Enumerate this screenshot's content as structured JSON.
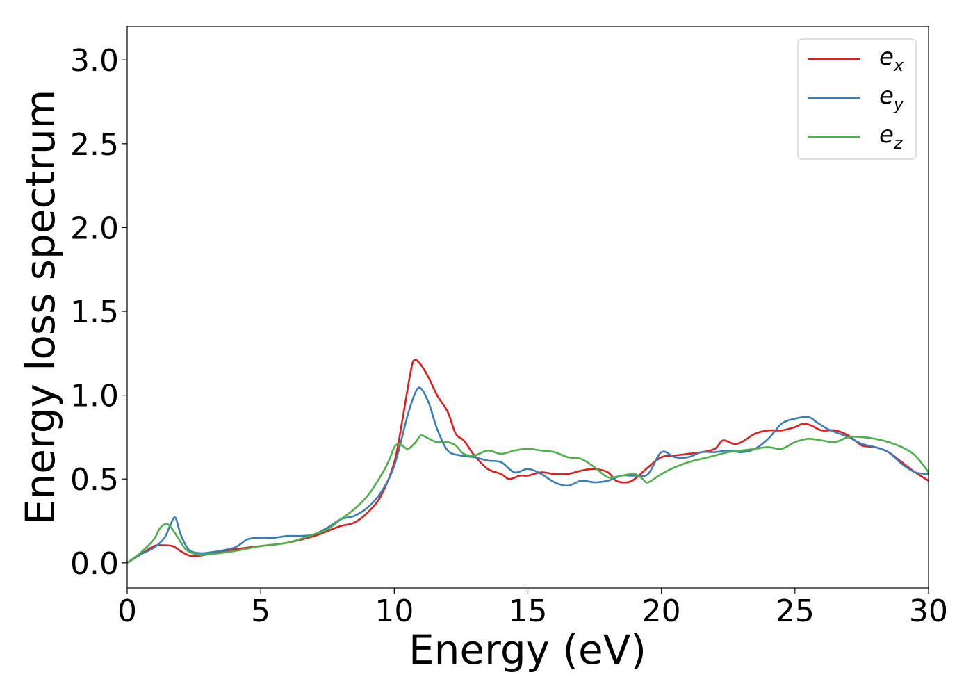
{
  "chart_data": {
    "type": "line",
    "title": "",
    "xlabel": "Energy (eV)",
    "ylabel": "Energy loss spectrum",
    "xlim": [
      0,
      30
    ],
    "ylim": [
      -0.15,
      3.2
    ],
    "xticks": [
      0,
      5,
      10,
      15,
      20,
      25,
      30
    ],
    "xtick_labels": [
      "0",
      "5",
      "10",
      "15",
      "20",
      "25",
      "30"
    ],
    "yticks": [
      0.0,
      0.5,
      1.0,
      1.5,
      2.0,
      2.5,
      3.0
    ],
    "ytick_labels": [
      "0.0",
      "0.5",
      "1.0",
      "1.5",
      "2.0",
      "2.5",
      "3.0"
    ],
    "grid": false,
    "legend_position": "top-right",
    "series": [
      {
        "name": "e_x",
        "legend_base": "e",
        "legend_sub": "x",
        "color": "#e41a1c",
        "x": [
          0,
          0.5,
          1.0,
          1.3,
          1.7,
          2.0,
          2.3,
          2.6,
          3.0,
          4.0,
          5.0,
          6.0,
          7.0,
          7.5,
          8.0,
          8.5,
          9.0,
          9.5,
          10.0,
          10.3,
          10.6,
          10.75,
          11.0,
          11.3,
          11.6,
          12.0,
          12.3,
          12.6,
          13.0,
          13.5,
          14.0,
          14.3,
          14.7,
          15.0,
          15.5,
          16.0,
          16.5,
          17.0,
          17.5,
          18.0,
          18.3,
          18.7,
          19.0,
          19.5,
          20.0,
          20.5,
          21.0,
          21.5,
          22.0,
          22.3,
          22.7,
          23.0,
          23.5,
          24.0,
          24.5,
          25.0,
          25.3,
          25.6,
          26.0,
          26.5,
          27.0,
          27.5,
          28.0,
          28.5,
          29.0,
          29.5,
          30.0
        ],
        "y": [
          0.0,
          0.05,
          0.1,
          0.105,
          0.1,
          0.07,
          0.045,
          0.04,
          0.05,
          0.08,
          0.1,
          0.12,
          0.16,
          0.19,
          0.22,
          0.24,
          0.3,
          0.4,
          0.6,
          0.85,
          1.13,
          1.21,
          1.18,
          1.1,
          1.0,
          0.9,
          0.77,
          0.73,
          0.64,
          0.56,
          0.53,
          0.5,
          0.52,
          0.52,
          0.54,
          0.53,
          0.53,
          0.55,
          0.56,
          0.54,
          0.49,
          0.48,
          0.5,
          0.57,
          0.63,
          0.64,
          0.65,
          0.66,
          0.68,
          0.73,
          0.71,
          0.72,
          0.77,
          0.79,
          0.79,
          0.81,
          0.83,
          0.82,
          0.79,
          0.79,
          0.76,
          0.7,
          0.69,
          0.66,
          0.6,
          0.54,
          0.49
        ]
      },
      {
        "name": "e_y",
        "legend_base": "e",
        "legend_sub": "y",
        "color": "#377eb8",
        "x": [
          0,
          0.5,
          1.0,
          1.4,
          1.6,
          1.8,
          2.0,
          2.3,
          2.6,
          3.0,
          4.0,
          4.5,
          5.0,
          5.5,
          6.0,
          6.5,
          7.0,
          7.5,
          8.0,
          8.5,
          9.0,
          9.5,
          10.0,
          10.5,
          10.8,
          11.0,
          11.3,
          11.6,
          12.0,
          12.5,
          13.0,
          13.5,
          14.0,
          14.5,
          15.0,
          15.5,
          16.0,
          16.5,
          17.0,
          17.5,
          18.0,
          18.5,
          19.0,
          19.5,
          20.0,
          20.5,
          21.0,
          21.5,
          22.0,
          22.5,
          23.0,
          23.5,
          24.0,
          24.5,
          25.0,
          25.5,
          25.8,
          26.2,
          26.5,
          27.0,
          27.5,
          28.0,
          28.5,
          29.0,
          29.5,
          30.0
        ],
        "y": [
          0.0,
          0.05,
          0.09,
          0.15,
          0.22,
          0.27,
          0.17,
          0.08,
          0.06,
          0.06,
          0.09,
          0.14,
          0.15,
          0.15,
          0.16,
          0.16,
          0.17,
          0.21,
          0.26,
          0.28,
          0.33,
          0.42,
          0.58,
          0.88,
          1.02,
          1.04,
          0.95,
          0.8,
          0.67,
          0.64,
          0.63,
          0.61,
          0.6,
          0.54,
          0.56,
          0.53,
          0.48,
          0.46,
          0.49,
          0.48,
          0.49,
          0.52,
          0.52,
          0.53,
          0.66,
          0.63,
          0.63,
          0.66,
          0.66,
          0.67,
          0.66,
          0.68,
          0.74,
          0.83,
          0.86,
          0.87,
          0.84,
          0.8,
          0.78,
          0.75,
          0.71,
          0.69,
          0.66,
          0.59,
          0.54,
          0.53
        ]
      },
      {
        "name": "e_z",
        "legend_base": "e",
        "legend_sub": "z",
        "color": "#4daf4a",
        "x": [
          0,
          0.5,
          1.0,
          1.2,
          1.4,
          1.6,
          1.9,
          2.2,
          2.6,
          3.0,
          4.0,
          5.0,
          6.0,
          7.0,
          7.5,
          8.0,
          8.5,
          9.0,
          9.5,
          9.8,
          10.0,
          10.2,
          10.5,
          10.8,
          11.0,
          11.3,
          11.6,
          12.0,
          12.3,
          12.6,
          13.0,
          13.5,
          14.0,
          14.5,
          15.0,
          15.5,
          16.0,
          16.5,
          17.0,
          17.5,
          18.0,
          18.5,
          19.0,
          19.3,
          19.5,
          20.0,
          20.5,
          21.0,
          21.5,
          22.0,
          22.5,
          23.0,
          23.5,
          24.0,
          24.5,
          25.0,
          25.5,
          26.0,
          26.5,
          27.0,
          27.5,
          28.0,
          28.5,
          29.0,
          29.5,
          30.0
        ],
        "y": [
          0.0,
          0.06,
          0.14,
          0.2,
          0.23,
          0.22,
          0.15,
          0.08,
          0.05,
          0.05,
          0.07,
          0.1,
          0.12,
          0.17,
          0.2,
          0.26,
          0.32,
          0.4,
          0.52,
          0.61,
          0.69,
          0.71,
          0.68,
          0.72,
          0.76,
          0.74,
          0.72,
          0.72,
          0.7,
          0.65,
          0.64,
          0.67,
          0.65,
          0.67,
          0.68,
          0.67,
          0.66,
          0.63,
          0.62,
          0.57,
          0.51,
          0.52,
          0.53,
          0.5,
          0.48,
          0.53,
          0.57,
          0.6,
          0.62,
          0.64,
          0.66,
          0.67,
          0.68,
          0.69,
          0.68,
          0.72,
          0.74,
          0.73,
          0.72,
          0.75,
          0.75,
          0.74,
          0.72,
          0.69,
          0.64,
          0.54
        ]
      }
    ]
  }
}
